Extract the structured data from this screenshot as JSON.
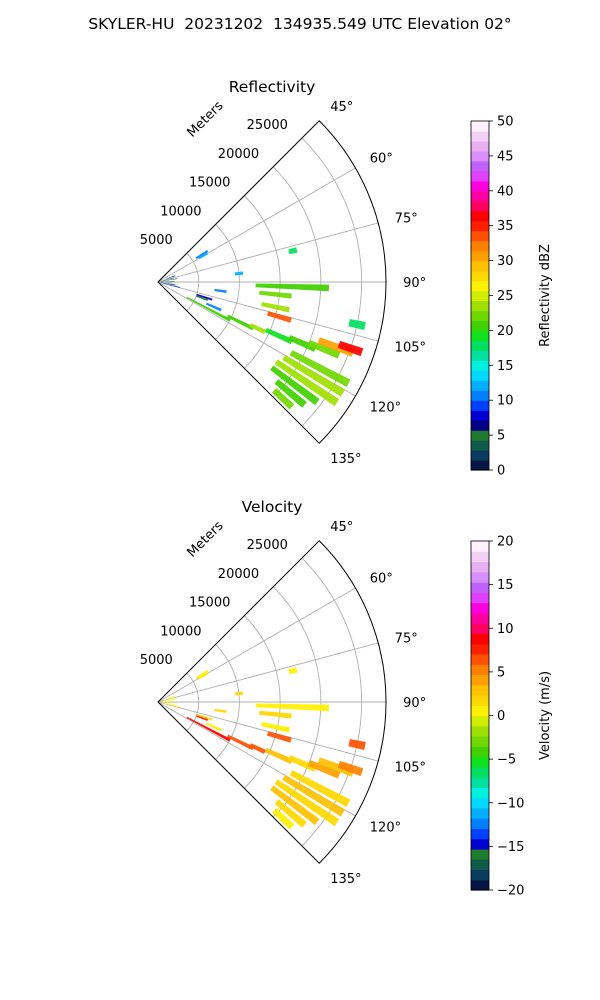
{
  "figure": {
    "suptitle": "SKYLER-HU  20231202  134935.549 UTC Elevation 02°"
  },
  "chart_data": [
    {
      "type": "polar-sector-scan",
      "title": "Reflectivity",
      "range_label": "Meters",
      "range_ticks": [
        5000,
        10000,
        15000,
        20000,
        25000
      ],
      "range_max": 28000,
      "azimuth_range_deg": [
        45,
        135
      ],
      "azimuth_ticks": [
        "45°",
        "60°",
        "75°",
        "90°",
        "105°",
        "120°",
        "135°"
      ],
      "grid": true,
      "colorbar": {
        "label": "Reflectivity dBZ",
        "min": 0,
        "max": 50,
        "ticks": [
          0,
          5,
          10,
          15,
          20,
          25,
          30,
          35,
          40,
          45,
          50
        ],
        "colors": [
          "#061544",
          "#0a3b5e",
          "#0f5a48",
          "#1f7a2e",
          "#000080",
          "#0000d0",
          "#0040ff",
          "#0080ff",
          "#00b0ff",
          "#00d8ff",
          "#00f0e0",
          "#00e0a0",
          "#00e060",
          "#10e020",
          "#40d000",
          "#70d800",
          "#a0e000",
          "#d0ee00",
          "#fff000",
          "#ffd800",
          "#ffc000",
          "#ffa000",
          "#ff8000",
          "#ff5000",
          "#ff2000",
          "#ff0000",
          "#ff0060",
          "#ff00a0",
          "#ff00e0",
          "#e040ff",
          "#c060ff",
          "#d890ff",
          "#e8b0f0",
          "#f4d0f4",
          "#fff0ff"
        ]
      },
      "echoes": [
        {
          "az": 58,
          "r": [
            5500,
            7200
          ],
          "value": 10
        },
        {
          "az": 60,
          "r": [
            5800,
            7000
          ],
          "value": 12
        },
        {
          "az": 70,
          "r": [
            1000,
            2200
          ],
          "value": 8
        },
        {
          "az": 75,
          "r": [
            300,
            2000
          ],
          "value": 5
        },
        {
          "az": 80,
          "r": [
            300,
            2400
          ],
          "value": 4
        },
        {
          "az": 84,
          "r": [
            9500,
            10500
          ],
          "value": 12
        },
        {
          "az": 77,
          "r": [
            16500,
            17500
          ],
          "value": 18
        },
        {
          "az": 88,
          "r": [
            300,
            2000
          ],
          "value": 3
        },
        {
          "az": 95,
          "r": [
            200,
            1800
          ],
          "value": 4
        },
        {
          "az": 100,
          "r": [
            300,
            2200
          ],
          "value": 6
        },
        {
          "az": 104,
          "r": [
            400,
            2800
          ],
          "value": 9
        },
        {
          "az": 108,
          "r": [
            5000,
            7000
          ],
          "value": 8
        },
        {
          "az": 110,
          "r": [
            5000,
            6500
          ],
          "value": 5
        },
        {
          "az": 114,
          "r": [
            6500,
            8500
          ],
          "value": 10
        },
        {
          "az": 98,
          "r": [
            7000,
            8500
          ],
          "value": 10
        },
        {
          "az": 92,
          "r": [
            12000,
            21000
          ],
          "value": 20
        },
        {
          "az": 96,
          "r": [
            12500,
            16500
          ],
          "value": 22
        },
        {
          "az": 102,
          "r": [
            13000,
            16500
          ],
          "value": 24
        },
        {
          "az": 106,
          "r": [
            14000,
            17000
          ],
          "value": 33
        },
        {
          "az": 102,
          "r": [
            24000,
            26000
          ],
          "value": 18
        },
        {
          "az": 118,
          "r": [
            4000,
            10000
          ],
          "value": 20
        },
        {
          "az": 116,
          "r": [
            9500,
            13000
          ],
          "value": 21
        },
        {
          "az": 115,
          "r": [
            12500,
            14500
          ],
          "value": 23
        },
        {
          "az": 114,
          "r": [
            14500,
            18000
          ],
          "value": 19
        },
        {
          "az": 113,
          "r": [
            17500,
            21000
          ],
          "value": 20
        },
        {
          "az": 112,
          "r": [
            20000,
            24000
          ],
          "value": 22
        },
        {
          "az": 110,
          "r": [
            21000,
            25500
          ],
          "value": 30
        },
        {
          "az": 109,
          "r": [
            23500,
            26500
          ],
          "value": 36
        },
        {
          "az": 118,
          "r": [
            18500,
            26500
          ],
          "value": 22
        },
        {
          "az": 121,
          "r": [
            18000,
            26500
          ],
          "value": 24
        },
        {
          "az": 124,
          "r": [
            17500,
            26500
          ],
          "value": 23
        },
        {
          "az": 127,
          "r": [
            17500,
            24500
          ],
          "value": 21
        },
        {
          "az": 130,
          "r": [
            19000,
            23500
          ],
          "value": 20
        },
        {
          "az": 133,
          "r": [
            19500,
            22500
          ],
          "value": 22
        }
      ]
    },
    {
      "type": "polar-sector-scan",
      "title": "Velocity",
      "range_label": "Meters",
      "range_ticks": [
        5000,
        10000,
        15000,
        20000,
        25000
      ],
      "range_max": 28000,
      "azimuth_range_deg": [
        45,
        135
      ],
      "azimuth_ticks": [
        "45°",
        "60°",
        "75°",
        "90°",
        "105°",
        "120°",
        "135°"
      ],
      "grid": true,
      "colorbar": {
        "label": "Velocity (m/s)",
        "min": -20,
        "max": 20,
        "ticks": [
          -20,
          -15,
          -10,
          -5,
          0,
          5,
          10,
          15,
          20
        ],
        "colors": [
          "#061544",
          "#0a3b5e",
          "#0f5a48",
          "#1f7a2e",
          "#0000d0",
          "#0040ff",
          "#0080ff",
          "#00b0ff",
          "#00d8ff",
          "#00f0e0",
          "#00e0a0",
          "#00e060",
          "#10e020",
          "#40d000",
          "#70d800",
          "#a0e000",
          "#d0ee00",
          "#fff000",
          "#ffd800",
          "#ffc000",
          "#ffa000",
          "#ff8000",
          "#ff5000",
          "#ff2000",
          "#ff0000",
          "#ff0060",
          "#ff00a0",
          "#ff00e0",
          "#e040ff",
          "#c060ff",
          "#d890ff",
          "#e8b0f0",
          "#f4d0f4",
          "#fff0ff"
        ]
      },
      "echoes": [
        {
          "az": 58,
          "r": [
            5500,
            7200
          ],
          "value": 1
        },
        {
          "az": 60,
          "r": [
            5800,
            7000
          ],
          "value": 0
        },
        {
          "az": 70,
          "r": [
            1000,
            2200
          ],
          "value": 1
        },
        {
          "az": 75,
          "r": [
            300,
            2000
          ],
          "value": 0
        },
        {
          "az": 80,
          "r": [
            300,
            2400
          ],
          "value": 1
        },
        {
          "az": 84,
          "r": [
            9500,
            10500
          ],
          "value": 2
        },
        {
          "az": 77,
          "r": [
            16500,
            17500
          ],
          "value": 1
        },
        {
          "az": 88,
          "r": [
            300,
            2000
          ],
          "value": 0
        },
        {
          "az": 95,
          "r": [
            200,
            1800
          ],
          "value": 1
        },
        {
          "az": 100,
          "r": [
            300,
            2200
          ],
          "value": 0
        },
        {
          "az": 104,
          "r": [
            400,
            2800
          ],
          "value": 1
        },
        {
          "az": 108,
          "r": [
            5000,
            7000
          ],
          "value": 2
        },
        {
          "az": 110,
          "r": [
            5000,
            6500
          ],
          "value": 8
        },
        {
          "az": 114,
          "r": [
            6500,
            8500
          ],
          "value": 1
        },
        {
          "az": 98,
          "r": [
            7000,
            8500
          ],
          "value": 2
        },
        {
          "az": 92,
          "r": [
            12000,
            21000
          ],
          "value": 1
        },
        {
          "az": 96,
          "r": [
            12500,
            16500
          ],
          "value": 2
        },
        {
          "az": 102,
          "r": [
            13000,
            16500
          ],
          "value": 1
        },
        {
          "az": 106,
          "r": [
            14000,
            17000
          ],
          "value": 7
        },
        {
          "az": 102,
          "r": [
            24000,
            26000
          ],
          "value": 6
        },
        {
          "az": 118,
          "r": [
            4000,
            10000
          ],
          "value": 9
        },
        {
          "az": 116,
          "r": [
            9500,
            13000
          ],
          "value": 6
        },
        {
          "az": 115,
          "r": [
            12500,
            14500
          ],
          "value": 7
        },
        {
          "az": 114,
          "r": [
            14500,
            18000
          ],
          "value": 3
        },
        {
          "az": 113,
          "r": [
            17500,
            21000
          ],
          "value": 2
        },
        {
          "az": 112,
          "r": [
            20000,
            24000
          ],
          "value": 4
        },
        {
          "az": 110,
          "r": [
            21000,
            25500
          ],
          "value": 3
        },
        {
          "az": 109,
          "r": [
            23500,
            26500
          ],
          "value": 5
        },
        {
          "az": 118,
          "r": [
            18500,
            26500
          ],
          "value": 2
        },
        {
          "az": 121,
          "r": [
            18000,
            26500
          ],
          "value": 3
        },
        {
          "az": 124,
          "r": [
            17500,
            26500
          ],
          "value": 2
        },
        {
          "az": 127,
          "r": [
            17500,
            24500
          ],
          "value": 3
        },
        {
          "az": 130,
          "r": [
            19000,
            23500
          ],
          "value": 2
        },
        {
          "az": 133,
          "r": [
            19500,
            22500
          ],
          "value": 1
        }
      ]
    }
  ]
}
